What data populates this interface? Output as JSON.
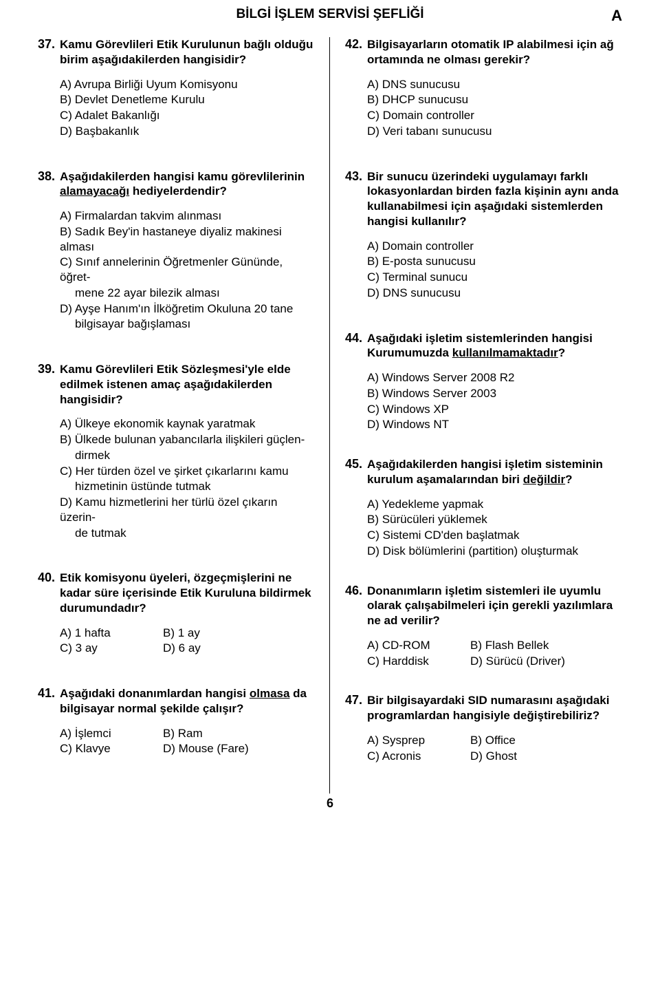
{
  "header": {
    "title": "BİLGİ İŞLEM SERVİSİ ŞEFLİĞİ",
    "letter": "A"
  },
  "page_number": "6",
  "q37": {
    "num": "37.",
    "text_a": "Kamu Görevlileri Etik Kurulunun bağlı olduğu birim aşağıdakilerden hangisidir?",
    "a": "A) Avrupa Birliği Uyum Komisyonu",
    "b": "B) Devlet Denetleme Kurulu",
    "c": "C) Adalet Bakanlığı",
    "d": "D) Başbakanlık"
  },
  "q38": {
    "num": "38.",
    "pre": "Aşağıdakilerden hangisi kamu görevlilerinin ",
    "u": "alamayacağı",
    "post": " hediyelerdendir?",
    "a": "A) Firmalardan takvim alınması",
    "b": "B) Sadık Bey'in hastaneye diyaliz makinesi alması",
    "c1": "C) Sınıf annelerinin Öğretmenler Gününde, öğret-",
    "c2": "mene 22 ayar bilezik alması",
    "d1": "D) Ayşe Hanım'ın İlköğretim Okuluna 20 tane",
    "d2": "bilgisayar bağışlaması"
  },
  "q39": {
    "num": "39.",
    "text_a": "Kamu Görevlileri Etik Sözleşmesi'yle elde edilmek istenen amaç aşağıdakilerden hangisidir?",
    "a": "A) Ülkeye ekonomik kaynak yaratmak",
    "b1": "B) Ülkede bulunan yabancılarla ilişkileri güçlen-",
    "b2": "dirmek",
    "c1": "C) Her türden özel ve şirket çıkarlarını kamu",
    "c2": "hizmetinin üstünde tutmak",
    "d1": "D) Kamu hizmetlerini her türlü özel çıkarın üzerin-",
    "d2": "de tutmak"
  },
  "q40": {
    "num": "40.",
    "text_a": "Etik komisyonu üyeleri, özgeçmişlerini ne kadar süre içerisinde Etik Kuruluna bildirmek durumundadır?",
    "a": "A) 1 hafta",
    "b": "B) 1 ay",
    "c": "C) 3 ay",
    "d": "D) 6 ay"
  },
  "q41": {
    "num": "41.",
    "pre": "Aşağıdaki donanımlardan hangisi ",
    "u": "olmasa",
    "post": " da bilgisayar normal şekilde çalışır?",
    "a": "A) İşlemci",
    "b": "B) Ram",
    "c": "C) Klavye",
    "d": "D) Mouse (Fare)"
  },
  "q42": {
    "num": "42.",
    "text_a": "Bilgisayarların otomatik IP alabilmesi için ağ ortamında ne olması gerekir?",
    "a": "A) DNS sunucusu",
    "b": "B) DHCP sunucusu",
    "c": "C) Domain controller",
    "d": "D) Veri tabanı sunucusu"
  },
  "q43": {
    "num": "43.",
    "text_a": "Bir sunucu üzerindeki uygulamayı farklı lokasyonlardan birden fazla kişinin aynı anda kullanabilmesi için aşağıdaki sistemlerden hangisi kullanılır?",
    "a": "A) Domain controller",
    "b": "B) E-posta sunucusu",
    "c": "C) Terminal sunucu",
    "d": "D) DNS sunucusu"
  },
  "q44": {
    "num": "44.",
    "pre": "Aşağıdaki işletim sistemlerinden hangisi Kurumumuzda ",
    "u": "kullanılmamaktadır",
    "post": "?",
    "a": "A) Windows Server 2008 R2",
    "b": "B) Windows Server 2003",
    "c": "C) Windows XP",
    "d": "D) Windows NT"
  },
  "q45": {
    "num": "45.",
    "pre": "Aşağıdakilerden hangisi işletim sisteminin kurulum aşamalarından biri ",
    "u": "değildir",
    "post": "?",
    "a": "A) Yedekleme yapmak",
    "b": "B) Sürücüleri yüklemek",
    "c": "C) Sistemi CD'den başlatmak",
    "d": "D) Disk bölümlerini (partition) oluşturmak"
  },
  "q46": {
    "num": "46.",
    "text_a": "Donanımların işletim sistemleri ile uyumlu olarak çalışabilmeleri için gerekli yazılımlara ne ad verilir?",
    "a": "A) CD-ROM",
    "b": "B) Flash Bellek",
    "c": "C) Harddisk",
    "d": "D) Sürücü (Driver)"
  },
  "q47": {
    "num": "47.",
    "text_a": "Bir bilgisayardaki SID numarasını aşağıdaki programlardan hangisiyle değiştirebiliriz?",
    "a": "A) Sysprep",
    "b": "B) Office",
    "c": "C) Acronis",
    "d": "D) Ghost"
  }
}
